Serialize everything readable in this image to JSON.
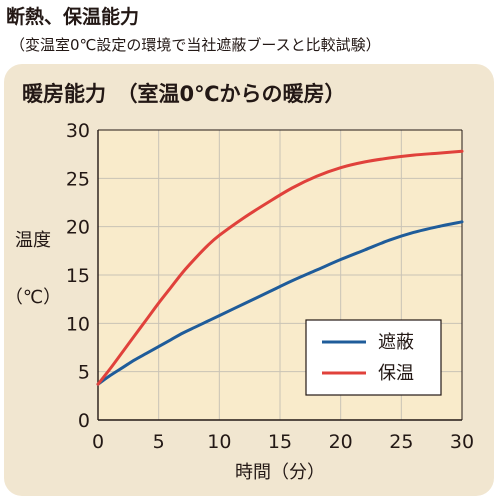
{
  "header": {
    "title": "断熱、保温能力",
    "subtitle": "（変温室0℃設定の環境で当社遮蔽ブースと比較試験）"
  },
  "colors": {
    "panel_bg": "#f1e6d0",
    "plot_bg": "#f9ebcb",
    "grid": "#c9c3b6",
    "series_shielding": "#1f5c9a",
    "series_warming": "#e0413b"
  },
  "chart_data": {
    "type": "line",
    "title": "暖房能力　（室温0℃からの暖房）",
    "xlabel": "時間（分）",
    "ylabel_main": "温度",
    "ylabel_unit": "（℃）",
    "xlim": [
      0,
      30
    ],
    "ylim": [
      0,
      30
    ],
    "xticks": [
      "0",
      "5",
      "10",
      "15",
      "20",
      "25",
      "30"
    ],
    "yticks": [
      "0",
      "5",
      "10",
      "15",
      "20",
      "25",
      "30"
    ],
    "grid": true,
    "legend_position": "bottom-right",
    "series": [
      {
        "name": "遮蔽",
        "color": "#1f5c9a",
        "x": [
          0,
          1,
          2,
          3,
          4,
          5,
          6,
          7,
          8,
          9,
          10,
          12,
          14,
          16,
          18,
          20,
          22,
          24,
          26,
          28,
          30
        ],
        "y": [
          3.7,
          4.6,
          5.4,
          6.2,
          6.9,
          7.6,
          8.3,
          9.0,
          9.6,
          10.2,
          10.8,
          12.0,
          13.2,
          14.4,
          15.5,
          16.6,
          17.6,
          18.6,
          19.4,
          20.0,
          20.5
        ]
      },
      {
        "name": "保温",
        "color": "#e0413b",
        "x": [
          0,
          1,
          2,
          3,
          4,
          5,
          6,
          7,
          8,
          9,
          10,
          12,
          14,
          16,
          18,
          20,
          22,
          24,
          26,
          28,
          30
        ],
        "y": [
          3.7,
          5.3,
          7.0,
          8.7,
          10.4,
          12.1,
          13.7,
          15.3,
          16.7,
          18.0,
          19.1,
          20.9,
          22.5,
          24.0,
          25.2,
          26.1,
          26.7,
          27.1,
          27.4,
          27.6,
          27.8
        ]
      }
    ]
  }
}
